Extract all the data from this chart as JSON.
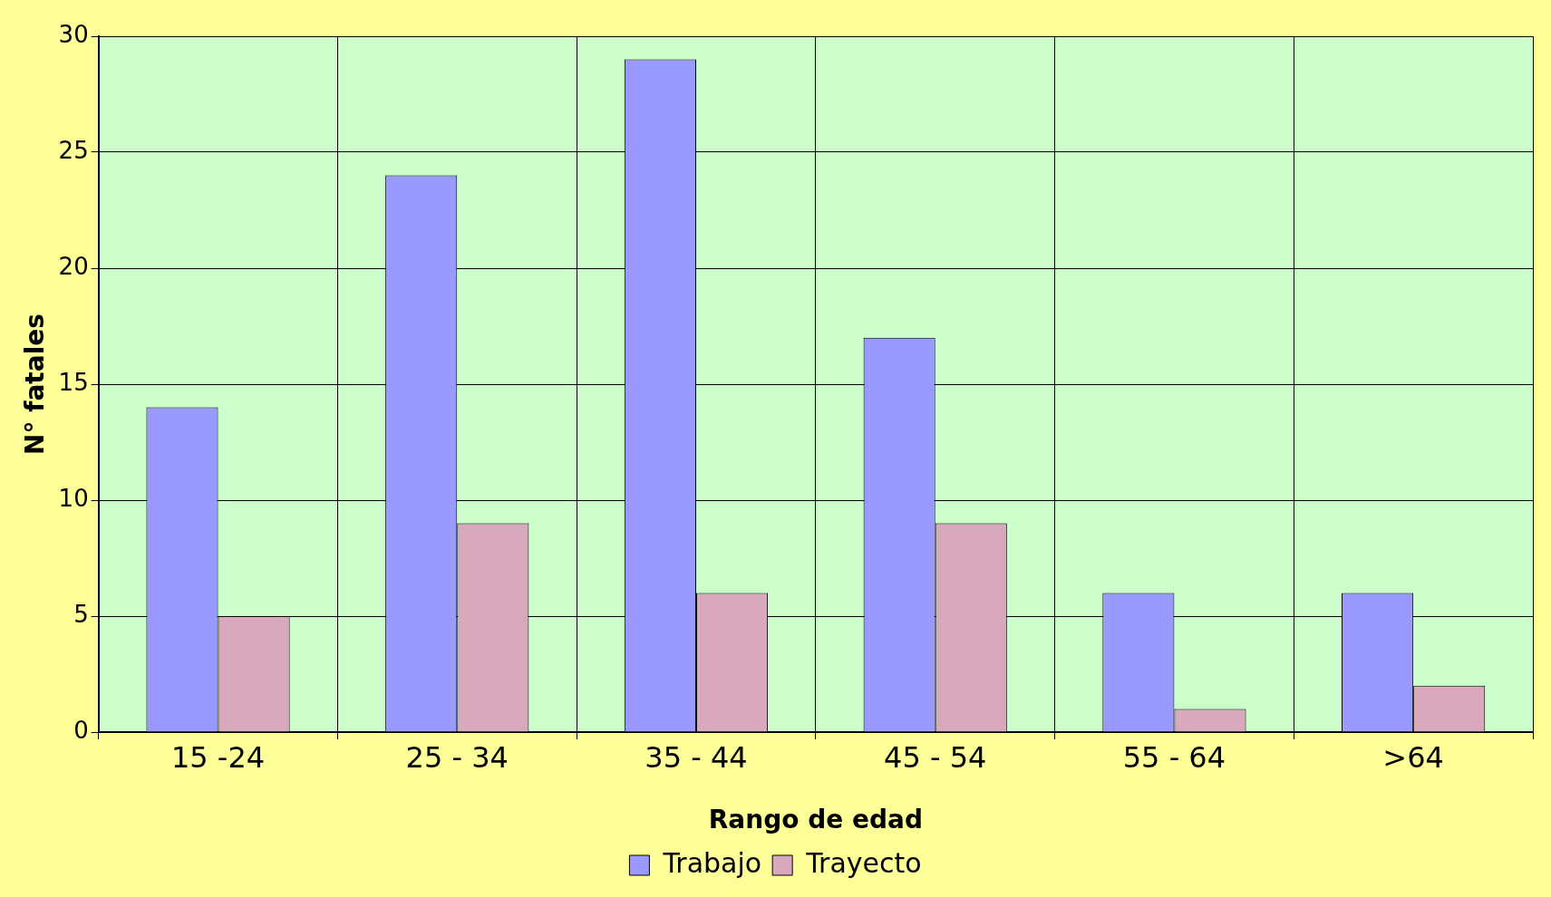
{
  "chart_data": {
    "type": "bar",
    "xlabel": "Rango de edad",
    "ylabel": "N° fatales",
    "categories": [
      "15 -24",
      "25 - 34",
      "35 - 44",
      "45 - 54",
      "55 - 64",
      ">64"
    ],
    "series": [
      {
        "name": "Trabajo",
        "color": "#9999ff",
        "values": [
          14,
          24,
          29,
          17,
          6,
          6
        ]
      },
      {
        "name": "Trayecto",
        "color": "#d8a8bc",
        "values": [
          5,
          9,
          6,
          9,
          1,
          2
        ]
      }
    ],
    "ylim": [
      0,
      30
    ],
    "yticks": [
      0,
      5,
      10,
      15,
      20,
      25,
      30
    ],
    "grid": true,
    "legend": "bottom"
  }
}
